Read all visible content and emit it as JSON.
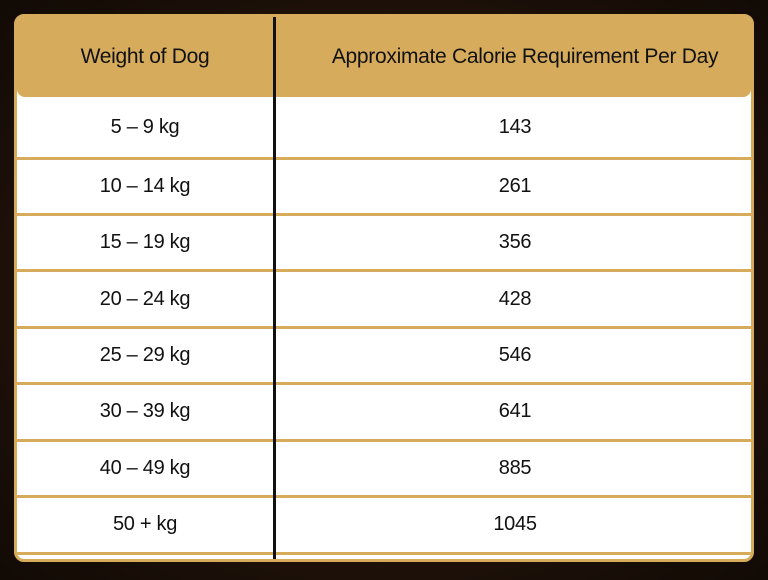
{
  "table": {
    "header": [
      "Weight of Dog",
      "Approximate Calorie Requirement Per Day"
    ],
    "rows": [
      [
        "5 – 9 kg",
        143
      ],
      [
        "10 – 14 kg",
        261
      ],
      [
        "15 – 19 kg",
        356
      ],
      [
        "20 – 24 kg",
        428
      ],
      [
        "25 – 29 kg",
        546
      ],
      [
        "30 – 39 kg",
        641
      ],
      [
        "40 – 49 kg",
        885
      ],
      [
        "50 + kg",
        1045
      ]
    ]
  }
}
